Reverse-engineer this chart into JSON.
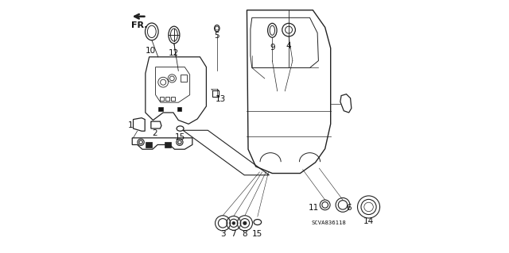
{
  "bg_color": "#ffffff",
  "diagram_code": "SCVA836118",
  "font_size": 7.5,
  "line_color": "#222222",
  "text_color": "#111111"
}
